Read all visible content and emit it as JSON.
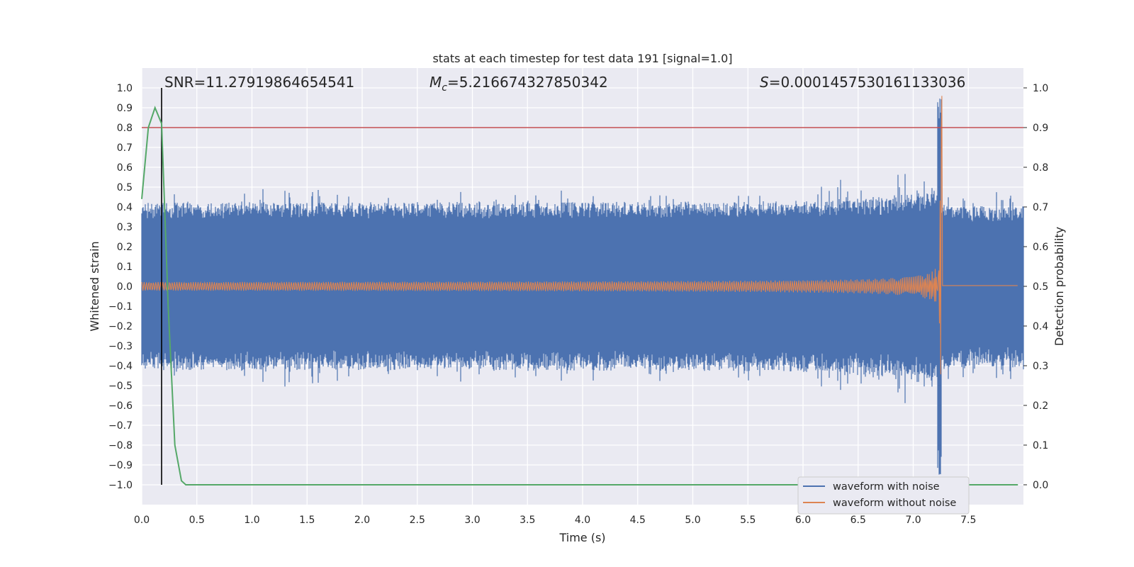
{
  "chart_data": {
    "type": "line",
    "title": "stats at each timestep for test data 191 [signal=1.0]",
    "xlabel": "Time (s)",
    "ylabel_left": "Whitened strain",
    "ylabel_right": "Detection probability",
    "xlim": [
      0.0,
      8.0
    ],
    "ylim_left": [
      -1.1,
      1.1
    ],
    "ylim_right": [
      -0.05,
      1.05
    ],
    "xticks": [
      "0.0",
      "0.5",
      "1.0",
      "1.5",
      "2.0",
      "2.5",
      "3.0",
      "3.5",
      "4.0",
      "4.5",
      "5.0",
      "5.5",
      "6.0",
      "6.5",
      "7.0",
      "7.5"
    ],
    "yticks_left": [
      "1.0",
      "0.9",
      "0.8",
      "0.7",
      "0.6",
      "0.5",
      "0.4",
      "0.3",
      "0.2",
      "0.1",
      "0.0",
      "−0.1",
      "−0.2",
      "−0.3",
      "−0.4",
      "−0.5",
      "−0.6",
      "−0.7",
      "−0.8",
      "−0.9",
      "−1.0"
    ],
    "yticks_right": [
      "1.0",
      "0.9",
      "0.8",
      "0.7",
      "0.6",
      "0.5",
      "0.4",
      "0.3",
      "0.2",
      "0.1",
      "0.0"
    ],
    "annotations": {
      "snr": "SNR=11.27919864654541",
      "mc_symbol": "M",
      "mc_sub": "c",
      "mc_value": "=5.216674327850342",
      "s_symbol": "S",
      "s_value": "=0.00014575301611330​36"
    },
    "grid": true,
    "legend_position": "lower-right",
    "series": [
      {
        "name": "waveform with noise",
        "color": "#4c72b0",
        "axis": "left",
        "baseline_amplitude": 0.42,
        "peak_time": 7.26,
        "peak_max": 0.99,
        "peak_min": -0.95
      },
      {
        "name": "waveform without noise",
        "color": "#dd8452",
        "axis": "left",
        "start_amplitude": 0.055,
        "amplitude_at_6s": 0.2,
        "peak_time": 7.26,
        "peak_max": 0.96,
        "peak_min": -0.7
      },
      {
        "name": "",
        "color": "#55a868",
        "axis": "right",
        "x": [
          0.0,
          0.06,
          0.12,
          0.18,
          0.24,
          0.3,
          0.36,
          0.4,
          1.0,
          2.0,
          3.0,
          4.0,
          5.0,
          6.0,
          7.0,
          7.95
        ],
        "y": [
          0.72,
          0.9,
          0.95,
          0.91,
          0.45,
          0.1,
          0.01,
          0.0,
          0.0,
          0.0,
          0.0,
          0.0,
          0.0,
          0.0,
          0.0,
          0.0
        ]
      }
    ],
    "threshold_line": {
      "y_right": 0.9,
      "color": "#c44e52"
    },
    "marker_vline": {
      "x": 0.18,
      "color": "#000000"
    }
  }
}
